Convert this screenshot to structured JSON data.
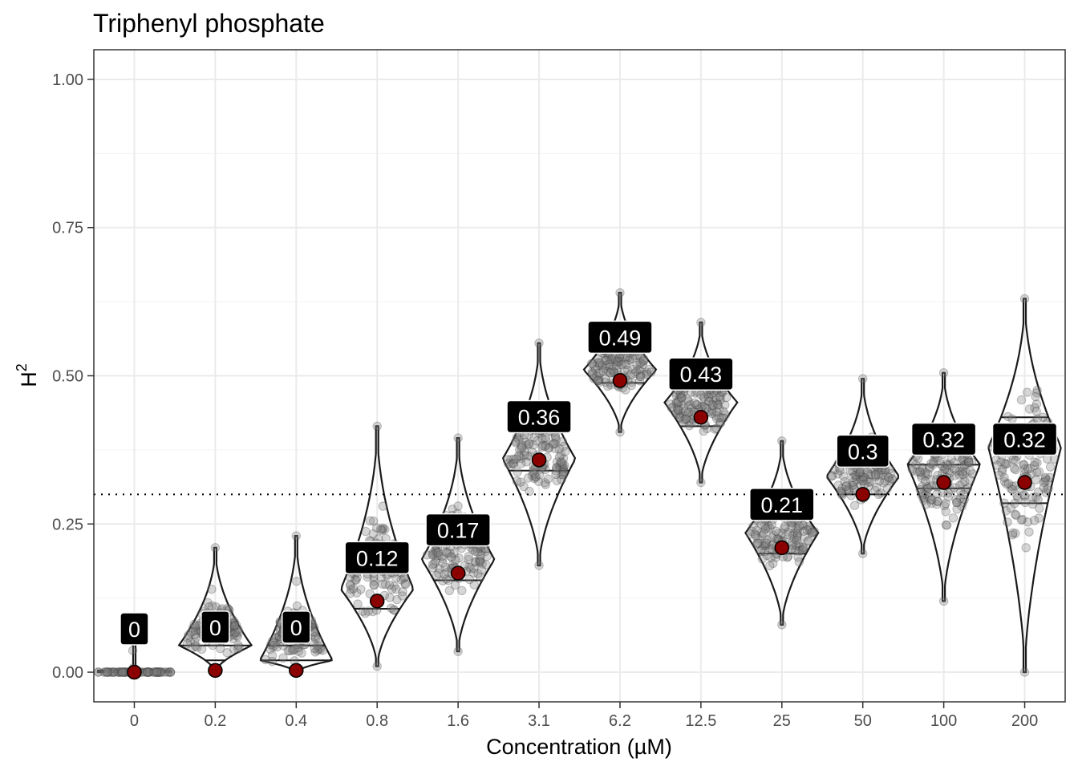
{
  "chart_data": {
    "type": "violin",
    "title": "Triphenyl phosphate",
    "xlabel": "Concentration (µM)",
    "ylabel": "H",
    "ylabel_superscript": "2",
    "ylim": [
      -0.05,
      1.05
    ],
    "yticks": [
      0.0,
      0.25,
      0.5,
      0.75,
      1.0
    ],
    "ytick_labels": [
      "0.00",
      "0.25",
      "0.50",
      "0.75",
      "1.00"
    ],
    "threshold": 0.3,
    "grid": true,
    "categories": [
      "0",
      "0.2",
      "0.4",
      "0.8",
      "1.6",
      "3.1",
      "6.2",
      "12.5",
      "25",
      "50",
      "100",
      "200"
    ],
    "point_estimates": [
      0.0,
      0.003,
      0.003,
      0.12,
      0.167,
      0.358,
      0.492,
      0.43,
      0.21,
      0.3,
      0.32,
      0.32
    ],
    "point_labels": [
      "0",
      "0",
      "0",
      "0.12",
      "0.17",
      "0.36",
      "0.49",
      "0.43",
      "0.21",
      "0.3",
      "0.32",
      "0.32"
    ],
    "distribution_ranges": [
      [
        0.0,
        0.085
      ],
      [
        0.0,
        0.21
      ],
      [
        0.0,
        0.23
      ],
      [
        0.01,
        0.415
      ],
      [
        0.035,
        0.395
      ],
      [
        0.18,
        0.555
      ],
      [
        0.405,
        0.64
      ],
      [
        0.32,
        0.59
      ],
      [
        0.08,
        0.39
      ],
      [
        0.2,
        0.495
      ],
      [
        0.12,
        0.505
      ],
      [
        0.0,
        0.63
      ]
    ],
    "distribution_modes": [
      0.0,
      0.045,
      0.02,
      0.14,
      0.19,
      0.36,
      0.51,
      0.455,
      0.235,
      0.33,
      0.35,
      0.38
    ],
    "quantile_lines": [
      [
        0.0,
        0.0,
        0.0
      ],
      [
        0.02,
        0.045,
        0.045
      ],
      [
        0.0,
        0.02,
        0.045
      ],
      [
        0.107,
        0.107,
        0.107
      ],
      [
        0.155,
        0.155,
        0.155
      ],
      [
        0.34,
        0.34,
        0.34
      ],
      [
        0.488,
        0.488,
        0.488
      ],
      [
        0.415,
        0.415,
        0.415
      ],
      [
        0.2,
        0.2,
        0.2
      ],
      [
        0.3,
        0.3,
        0.3
      ],
      [
        0.31,
        0.35,
        0.35
      ],
      [
        0.285,
        0.43,
        0.43
      ]
    ],
    "colors": {
      "violin_stroke": "#1a1a1a",
      "jitter_point": "#7f7f7f",
      "estimate_point": "#8b0000",
      "label_background": "#000000",
      "grid_major": "#ebebeb",
      "grid_minor": "#f2f2f2",
      "panel_border": "#333333"
    }
  }
}
